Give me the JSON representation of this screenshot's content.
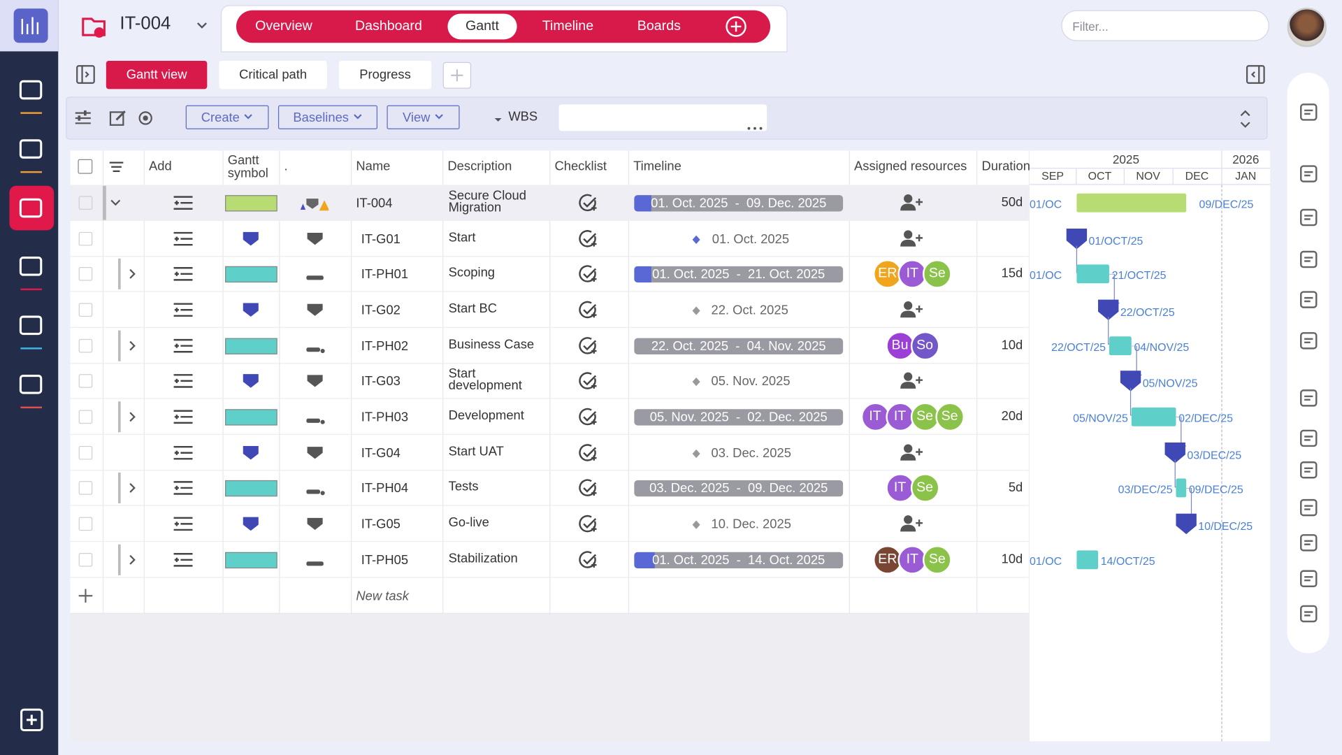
{
  "header": {
    "project_code": "IT-004",
    "nav_tabs": [
      "Overview",
      "Dashboard",
      "Gantt",
      "Timeline",
      "Boards"
    ],
    "filter_placeholder": "Filter..."
  },
  "view_tabs": [
    "Gantt view",
    "Critical path",
    "Progress"
  ],
  "toolbar": {
    "buttons": [
      "Create",
      "Baselines",
      "View"
    ],
    "grouping": "WBS"
  },
  "table": {
    "columns": [
      "Add",
      "Gantt symbol",
      ".",
      "Name",
      "Description",
      "Checklist",
      "Timeline",
      "Assigned resources",
      "Duration"
    ],
    "rows": [
      {
        "name": "IT-004",
        "description": "Secure Cloud Migration",
        "timeline": "01. Oct. 2025  -  09. Dec. 2025",
        "resources": [],
        "duration": "50d",
        "gantt_start": "01/OC",
        "gantt_end": "09/DEC/25"
      },
      {
        "name": "IT-G01",
        "description": "Start",
        "timeline": "01. Oct. 2025",
        "resources": [],
        "gantt_end": "01/OCT/25"
      },
      {
        "name": "IT-PH01",
        "description": "Scoping",
        "timeline": "01. Oct. 2025  -  21. Oct. 2025",
        "resources": [
          "ER",
          "IT",
          "Se"
        ],
        "duration": "15d",
        "gantt_start": "01/OC",
        "gantt_end": "21/OCT/25"
      },
      {
        "name": "IT-G02",
        "description": "Start BC",
        "timeline": "22. Oct. 2025",
        "resources": [],
        "gantt_end": "22/OCT/25"
      },
      {
        "name": "IT-PH02",
        "description": "Business Case",
        "timeline": "22. Oct. 2025  -  04. Nov. 2025",
        "resources": [
          "Bu",
          "So"
        ],
        "duration": "10d",
        "gantt_start": "22/OCT/25",
        "gantt_end": "04/NOV/25"
      },
      {
        "name": "IT-G03",
        "description": "Start development",
        "timeline": "05. Nov. 2025",
        "resources": [],
        "gantt_end": "05/NOV/25"
      },
      {
        "name": "IT-PH03",
        "description": "Development",
        "timeline": "05. Nov. 2025  -  02. Dec. 2025",
        "resources": [
          "IT",
          "IT",
          "Se",
          "Se"
        ],
        "duration": "20d",
        "gantt_start": "05/NOV/25",
        "gantt_end": "02/DEC/25"
      },
      {
        "name": "IT-G04",
        "description": "Start UAT",
        "timeline": "03. Dec. 2025",
        "resources": [],
        "gantt_end": "03/DEC/25"
      },
      {
        "name": "IT-PH04",
        "description": "Tests",
        "timeline": "03. Dec. 2025  -  09. Dec. 2025",
        "resources": [
          "IT",
          "Se"
        ],
        "duration": "5d",
        "gantt_start": "03/DEC/25",
        "gantt_end": "09/DEC/25"
      },
      {
        "name": "IT-G05",
        "description": "Go-live",
        "timeline": "10. Dec. 2025",
        "resources": [],
        "gantt_end": "10/DEC/25"
      },
      {
        "name": "IT-PH05",
        "description": "Stabilization",
        "timeline": "01. Oct. 2025  -  14. Oct. 2025",
        "resources": [
          "ER",
          "IT",
          "Se"
        ],
        "duration": "10d",
        "gantt_start": "01/OC",
        "gantt_end": "14/OCT/25"
      }
    ],
    "new_task": "New task"
  },
  "gantt": {
    "years": [
      "2025",
      "2026"
    ],
    "months": [
      "SEP",
      "OCT",
      "NOV",
      "DEC",
      "JAN"
    ]
  }
}
